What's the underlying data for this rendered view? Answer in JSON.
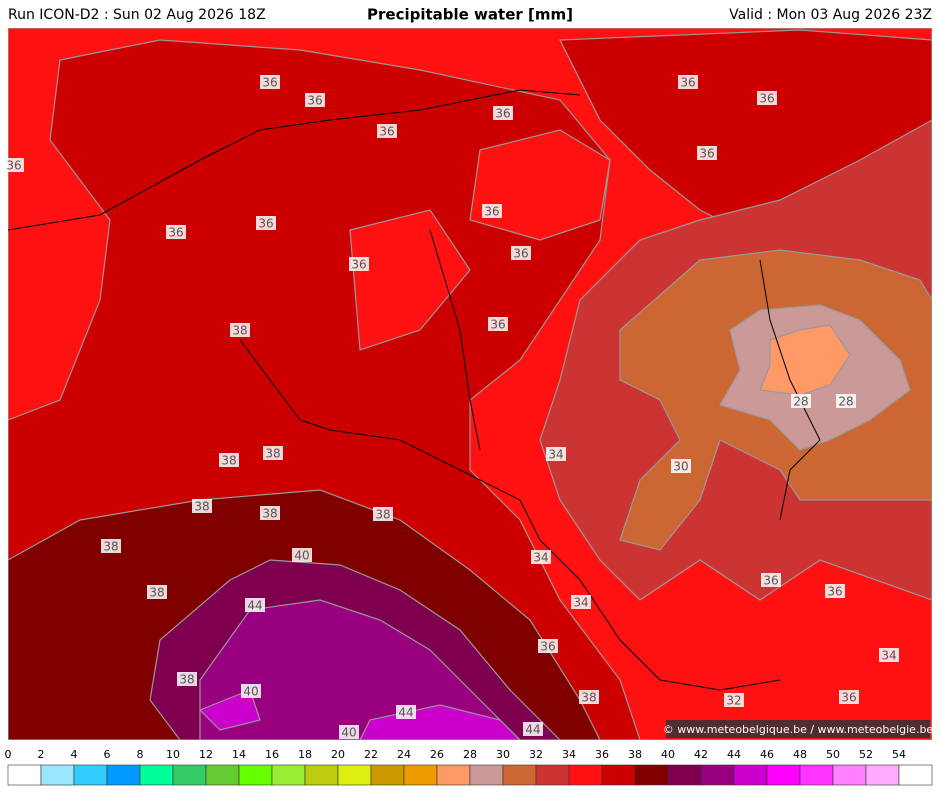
{
  "header": {
    "run": "Run ICON-D2 : Sun 02 Aug 2026 18Z",
    "title": "Precipitable water [mm]",
    "valid": "Valid : Mon 03 Aug 2026 23Z"
  },
  "map": {
    "contour_labels": [
      "36",
      "36",
      "36",
      "36",
      "36",
      "36",
      "36",
      "36",
      "36",
      "36",
      "36",
      "36",
      "36",
      "36",
      "38",
      "38",
      "38",
      "38",
      "38",
      "38",
      "38",
      "38",
      "38",
      "40",
      "44",
      "40",
      "40",
      "44",
      "44",
      "38",
      "36",
      "34",
      "34",
      "34",
      "30",
      "28",
      "28",
      "32",
      "36",
      "36",
      "34",
      "36"
    ],
    "credit": "© www.meteobelgique.be / www.meteobelgie.be"
  },
  "colorbar": {
    "levels": [
      0,
      2,
      4,
      6,
      8,
      10,
      12,
      14,
      16,
      18,
      20,
      22,
      24,
      26,
      28,
      30,
      32,
      34,
      36,
      38,
      40,
      42,
      44,
      46,
      48,
      50,
      52,
      54
    ],
    "colors": [
      "#ffffff",
      "#99e6ff",
      "#33ccff",
      "#0099ff",
      "#00ff99",
      "#33cc66",
      "#66cc33",
      "#66ff00",
      "#99ee33",
      "#bbcc11",
      "#ddee11",
      "#cc9900",
      "#ee9900",
      "#ff9966",
      "#cc9999",
      "#cc6633",
      "#cc3333",
      "#ff1111",
      "#cc0000",
      "#800000",
      "#800050",
      "#990080",
      "#cc00cc",
      "#ff00ff",
      "#ff33ff",
      "#ff80ff",
      "#ffaaff",
      "#ffffff"
    ]
  }
}
